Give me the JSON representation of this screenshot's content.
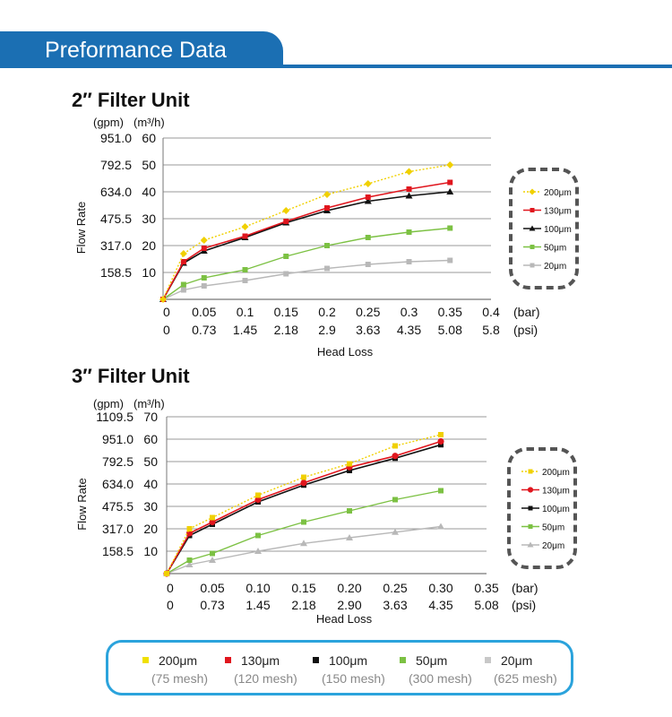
{
  "header": {
    "title": "Preformance Data"
  },
  "chart_data": [
    {
      "type": "line",
      "title": "2″ Filter Unit",
      "xlabel": "Head Loss",
      "ylabel": "Flow Rate",
      "y_unit_gpm": "(gpm)",
      "y_unit_m3h": "(m³/h)",
      "x_unit_bar": "(bar)",
      "x_unit_psi": "(psi)",
      "xlim": [
        0,
        0.4
      ],
      "ylim": [
        0,
        60
      ],
      "x_ticks_bar": [
        "0",
        "0.05",
        "0.1",
        "0.15",
        "0.2",
        "0.25",
        "0.3",
        "0.35",
        "0.4"
      ],
      "x_ticks_psi": [
        "0",
        "0.73",
        "1.45",
        "2.18",
        "2.9",
        "3.63",
        "4.35",
        "5.08",
        "5.8"
      ],
      "y_ticks_m3h": [
        "60",
        "50",
        "40",
        "30",
        "20",
        "10"
      ],
      "y_ticks_gpm": [
        "951.0",
        "792.5",
        "634.0",
        "475.5",
        "317.0",
        "158.5"
      ],
      "grid": true,
      "legend_position": "right",
      "series": [
        {
          "name": "200μm",
          "color": "#f0d000",
          "marker": "diamond",
          "dashed": true,
          "points": [
            [
              0,
              0
            ],
            [
              0.025,
              17
            ],
            [
              0.05,
              22
            ],
            [
              0.1,
              27
            ],
            [
              0.15,
              33
            ],
            [
              0.2,
              39
            ],
            [
              0.25,
              43
            ],
            [
              0.3,
              47.5
            ],
            [
              0.35,
              50
            ]
          ]
        },
        {
          "name": "130μm",
          "color": "#e0161e",
          "marker": "square",
          "dashed": false,
          "points": [
            [
              0,
              0
            ],
            [
              0.025,
              14
            ],
            [
              0.05,
              19
            ],
            [
              0.1,
              23.5
            ],
            [
              0.15,
              29
            ],
            [
              0.2,
              34
            ],
            [
              0.25,
              38
            ],
            [
              0.3,
              41
            ],
            [
              0.35,
              43.5
            ]
          ]
        },
        {
          "name": "100μm",
          "color": "#111111",
          "marker": "triangle",
          "dashed": false,
          "points": [
            [
              0,
              0
            ],
            [
              0.025,
              13.5
            ],
            [
              0.05,
              18
            ],
            [
              0.1,
              23
            ],
            [
              0.15,
              28.5
            ],
            [
              0.2,
              33
            ],
            [
              0.25,
              36.5
            ],
            [
              0.3,
              38.5
            ],
            [
              0.35,
              40
            ]
          ]
        },
        {
          "name": "50μm",
          "color": "#7cc143",
          "marker": "square",
          "dashed": false,
          "points": [
            [
              0,
              0
            ],
            [
              0.025,
              5.5
            ],
            [
              0.05,
              8
            ],
            [
              0.1,
              11
            ],
            [
              0.15,
              16
            ],
            [
              0.2,
              20
            ],
            [
              0.25,
              23
            ],
            [
              0.3,
              25
            ],
            [
              0.35,
              26.5
            ]
          ]
        },
        {
          "name": "20μm",
          "color": "#b8b8b8",
          "marker": "square",
          "dashed": false,
          "points": [
            [
              0,
              0
            ],
            [
              0.025,
              3.5
            ],
            [
              0.05,
              5
            ],
            [
              0.1,
              7
            ],
            [
              0.15,
              9.5
            ],
            [
              0.2,
              11.5
            ],
            [
              0.25,
              13
            ],
            [
              0.3,
              14
            ],
            [
              0.35,
              14.5
            ]
          ]
        }
      ]
    },
    {
      "type": "line",
      "title": "3″ Filter Unit",
      "xlabel": "Head Loss",
      "ylabel": "Flow Rate",
      "y_unit_gpm": "(gpm)",
      "y_unit_m3h": "(m³/h)",
      "x_unit_bar": "(bar)",
      "x_unit_psi": "(psi)",
      "xlim": [
        0,
        0.35
      ],
      "ylim": [
        0,
        70
      ],
      "x_ticks_bar": [
        "0",
        "0.05",
        "0.10",
        "0.15",
        "0.20",
        "0.25",
        "0.30",
        "0.35"
      ],
      "x_ticks_psi": [
        "0",
        "0.73",
        "1.45",
        "2.18",
        "2.90",
        "3.63",
        "4.35",
        "5.08"
      ],
      "y_ticks_m3h": [
        "70",
        "60",
        "50",
        "40",
        "30",
        "20",
        "10"
      ],
      "y_ticks_gpm": [
        "1109.5",
        "951.0",
        "792.5",
        "634.0",
        "475.5",
        "317.0",
        "158.5"
      ],
      "grid": true,
      "legend_position": "right",
      "series": [
        {
          "name": "200μm",
          "color": "#f0d000",
          "marker": "square",
          "dashed": true,
          "points": [
            [
              0,
              0
            ],
            [
              0.025,
              20
            ],
            [
              0.05,
              25
            ],
            [
              0.1,
              35
            ],
            [
              0.15,
              43
            ],
            [
              0.2,
              49
            ],
            [
              0.25,
              57
            ],
            [
              0.3,
              62
            ]
          ]
        },
        {
          "name": "130μm",
          "color": "#e0161e",
          "marker": "circle",
          "dashed": false,
          "points": [
            [
              0,
              0
            ],
            [
              0.025,
              18
            ],
            [
              0.05,
              23
            ],
            [
              0.1,
              33
            ],
            [
              0.15,
              40.5
            ],
            [
              0.2,
              47.5
            ],
            [
              0.25,
              52.5
            ],
            [
              0.3,
              59
            ]
          ]
        },
        {
          "name": "100μm",
          "color": "#111111",
          "marker": "square",
          "dashed": false,
          "points": [
            [
              0,
              0
            ],
            [
              0.025,
              17
            ],
            [
              0.05,
              22
            ],
            [
              0.1,
              32
            ],
            [
              0.15,
              39.5
            ],
            [
              0.2,
              46
            ],
            [
              0.25,
              51.5
            ],
            [
              0.3,
              57.5
            ]
          ]
        },
        {
          "name": "50μm",
          "color": "#7cc143",
          "marker": "square",
          "dashed": false,
          "points": [
            [
              0,
              0
            ],
            [
              0.025,
              6
            ],
            [
              0.05,
              9
            ],
            [
              0.1,
              17
            ],
            [
              0.15,
              23
            ],
            [
              0.2,
              28
            ],
            [
              0.25,
              33
            ],
            [
              0.3,
              37
            ]
          ]
        },
        {
          "name": "20μm",
          "color": "#b8b8b8",
          "marker": "triangle",
          "dashed": false,
          "points": [
            [
              0,
              0
            ],
            [
              0.025,
              4
            ],
            [
              0.05,
              6
            ],
            [
              0.1,
              10
            ],
            [
              0.15,
              13.5
            ],
            [
              0.2,
              16
            ],
            [
              0.25,
              18.5
            ],
            [
              0.3,
              21
            ]
          ]
        }
      ]
    }
  ],
  "bottom_legend": [
    {
      "label": "200μm",
      "sub": "(75 mesh)",
      "color": "#f0e000"
    },
    {
      "label": "130μm",
      "sub": "(120 mesh)",
      "color": "#e0161e"
    },
    {
      "label": "100μm",
      "sub": "(150 mesh)",
      "color": "#111111"
    },
    {
      "label": "50μm",
      "sub": "(300 mesh)",
      "color": "#7cc143"
    },
    {
      "label": "20μm",
      "sub": "(625 mesh)",
      "color": "#c8c8c8"
    }
  ]
}
